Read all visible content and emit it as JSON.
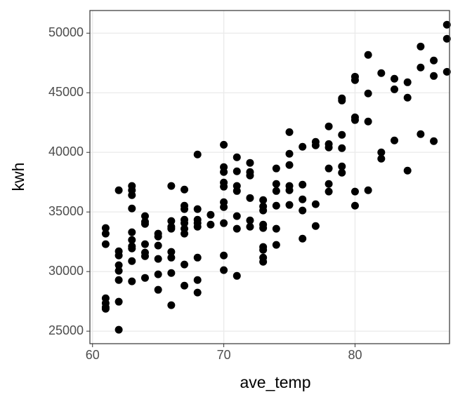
{
  "chart_data": {
    "type": "scatter",
    "x_label": "ave_temp",
    "y_label": "kwh",
    "x": [
      61,
      61,
      61,
      61,
      61,
      61,
      61,
      62,
      62,
      62,
      62,
      62,
      62,
      62,
      62,
      63,
      63,
      63,
      63,
      63,
      63,
      63,
      63,
      63,
      63,
      64,
      64,
      64,
      64,
      64,
      64,
      64,
      65,
      65,
      65,
      65,
      65,
      65,
      66,
      66,
      66,
      66,
      66,
      66,
      66,
      66,
      67,
      67,
      67,
      67,
      67,
      67,
      67,
      67,
      67,
      68,
      68,
      68,
      68,
      68,
      68,
      68,
      68,
      69,
      69,
      70,
      70,
      70,
      70,
      70,
      70,
      70,
      70,
      70,
      70,
      71,
      71,
      71,
      71,
      71,
      71,
      71,
      72,
      72,
      72,
      72,
      72,
      72,
      73,
      73,
      73,
      73,
      73,
      73,
      73,
      73,
      73,
      74,
      74,
      74,
      74,
      74,
      74,
      75,
      75,
      75,
      75,
      75,
      75,
      76,
      76,
      76,
      76,
      76,
      77,
      77,
      77,
      77,
      78,
      78,
      78,
      78,
      78,
      78,
      79,
      79,
      79,
      79,
      79,
      79,
      80,
      80,
      80,
      80,
      80,
      80,
      81,
      81,
      81,
      81,
      82,
      82,
      82,
      83,
      83,
      83,
      84,
      84,
      84,
      85,
      85,
      85,
      86,
      86,
      86,
      87,
      87,
      87
    ],
    "values": [
      33650,
      33180,
      32300,
      27760,
      27350,
      27000,
      26880,
      36820,
      31700,
      31350,
      30530,
      30060,
      29290,
      27470,
      25120,
      37180,
      36820,
      36410,
      35290,
      33300,
      32650,
      32120,
      31940,
      30880,
      29180,
      34650,
      34180,
      34000,
      32300,
      31590,
      31290,
      29470,
      33180,
      32940,
      32180,
      31060,
      29770,
      28470,
      37180,
      34240,
      33760,
      33590,
      31650,
      31170,
      29880,
      27180,
      36880,
      35530,
      35240,
      34350,
      34060,
      33590,
      33180,
      30590,
      28820,
      39820,
      35240,
      34350,
      34060,
      33760,
      31170,
      29290,
      28240,
      34760,
      33940,
      40640,
      38760,
      38350,
      37470,
      37120,
      35820,
      35410,
      34060,
      31350,
      30120,
      39590,
      38410,
      37180,
      36760,
      34650,
      33590,
      29640,
      39120,
      38350,
      38060,
      36170,
      34290,
      33760,
      36000,
      35470,
      35120,
      33940,
      33650,
      32060,
      31820,
      31170,
      30820,
      38650,
      37350,
      36760,
      35530,
      33590,
      32240,
      41700,
      39880,
      38940,
      37180,
      36820,
      35590,
      40470,
      37290,
      36060,
      35120,
      32760,
      40880,
      40590,
      35650,
      33820,
      42180,
      40700,
      40410,
      38650,
      37350,
      36710,
      44530,
      44350,
      41470,
      40350,
      38820,
      38290,
      46350,
      46060,
      42940,
      42710,
      36710,
      35530,
      48180,
      44940,
      42590,
      36820,
      46650,
      40000,
      39470,
      46180,
      45290,
      41000,
      45880,
      44590,
      38470,
      48880,
      47120,
      41530,
      47710,
      46410,
      40940,
      50710,
      49530,
      46760
    ],
    "color": "#000000",
    "xlim": [
      59.8,
      87.2
    ],
    "ylim": [
      23950,
      51900
    ],
    "xticks": [
      60,
      70,
      80
    ],
    "yticks": [
      25000,
      30000,
      35000,
      40000,
      45000,
      50000
    ],
    "grid": true
  }
}
